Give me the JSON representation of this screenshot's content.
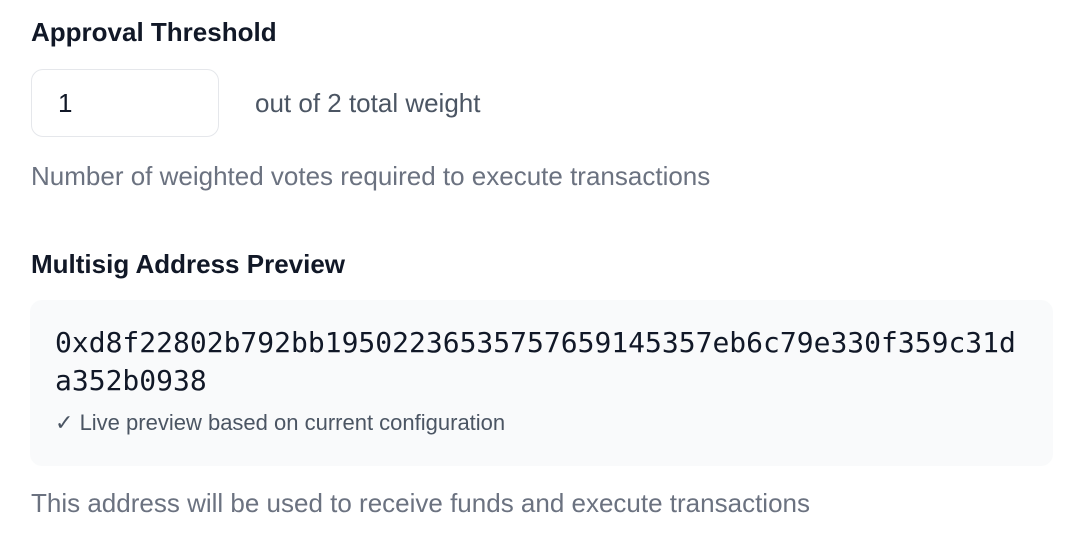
{
  "threshold": {
    "label": "Approval Threshold",
    "value": "1",
    "suffix": "out of 2 total weight",
    "help": "Number of weighted votes required to execute transactions"
  },
  "preview": {
    "label": "Multisig Address Preview",
    "address": "0xd8f22802b792bb19502236535757659145357eb6c79e330f359c31da352b0938",
    "live_icon": "check-icon",
    "live_text": "Live preview based on current configuration",
    "help": "This address will be used to receive funds and execute transactions"
  }
}
